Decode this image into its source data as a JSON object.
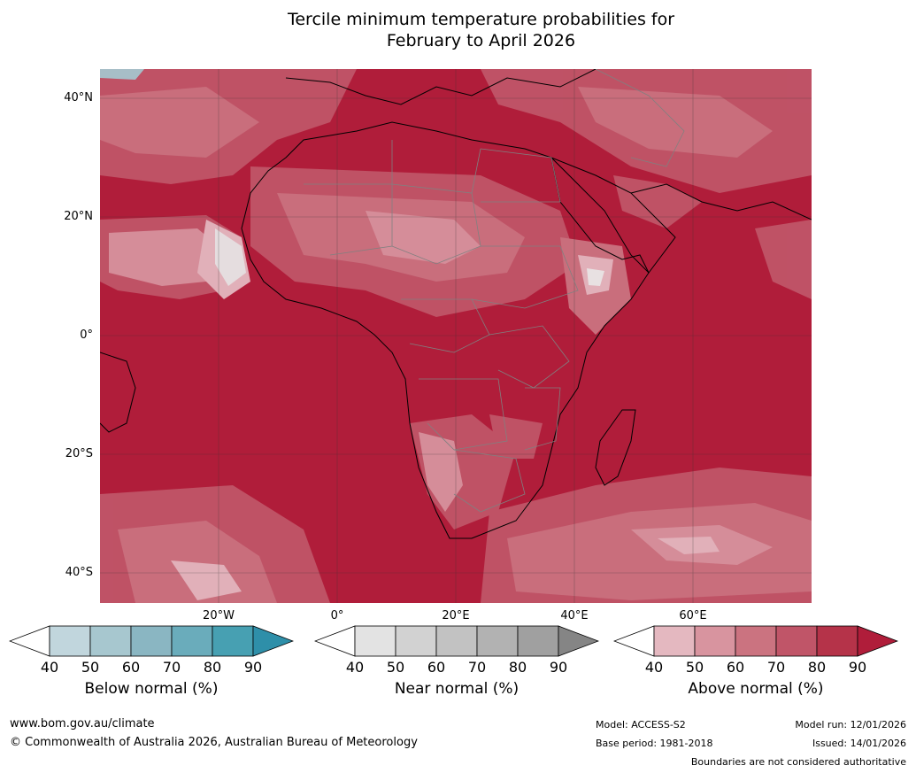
{
  "title_line1": "Tercile minimum temperature probabilities for",
  "title_line2": "February to April 2026",
  "lat_labels": [
    "40°N",
    "20°N",
    "0°",
    "20°S",
    "40°S"
  ],
  "lon_labels": [
    "20°W",
    "0°",
    "20°E",
    "40°E",
    "60°E"
  ],
  "colorbars": [
    {
      "title": "Below normal (%)",
      "ticks": [
        "40",
        "50",
        "60",
        "70",
        "80",
        "90"
      ],
      "colors": [
        "#ffffff",
        "#c1d6dd",
        "#a7c7cf",
        "#8ab6c2",
        "#6aacbb",
        "#47a0b2",
        "#2e8fa9"
      ]
    },
    {
      "title": "Near normal (%)",
      "ticks": [
        "40",
        "50",
        "60",
        "70",
        "80",
        "90"
      ],
      "colors": [
        "#ffffff",
        "#e3e3e3",
        "#d2d2d2",
        "#c2c2c2",
        "#b2b2b2",
        "#a0a0a0",
        "#858585"
      ]
    },
    {
      "title": "Above normal (%)",
      "ticks": [
        "40",
        "50",
        "60",
        "70",
        "80",
        "90"
      ],
      "colors": [
        "#ffffff",
        "#e4b8c0",
        "#d8949f",
        "#cb7380",
        "#c05568",
        "#b53349",
        "#b01d3a"
      ]
    }
  ],
  "footer": {
    "website": "www.bom.gov.au/climate",
    "copyright": "© Commonwealth of Australia 2026, Australian Bureau of Meteorology",
    "model": "Model: ACCESS-S2",
    "base_period": "Base period: 1981-2018",
    "model_run": "Model run: 12/01/2026",
    "issued": "Issued: 14/01/2026",
    "disclaimer": "Boundaries are not considered authoritative"
  }
}
